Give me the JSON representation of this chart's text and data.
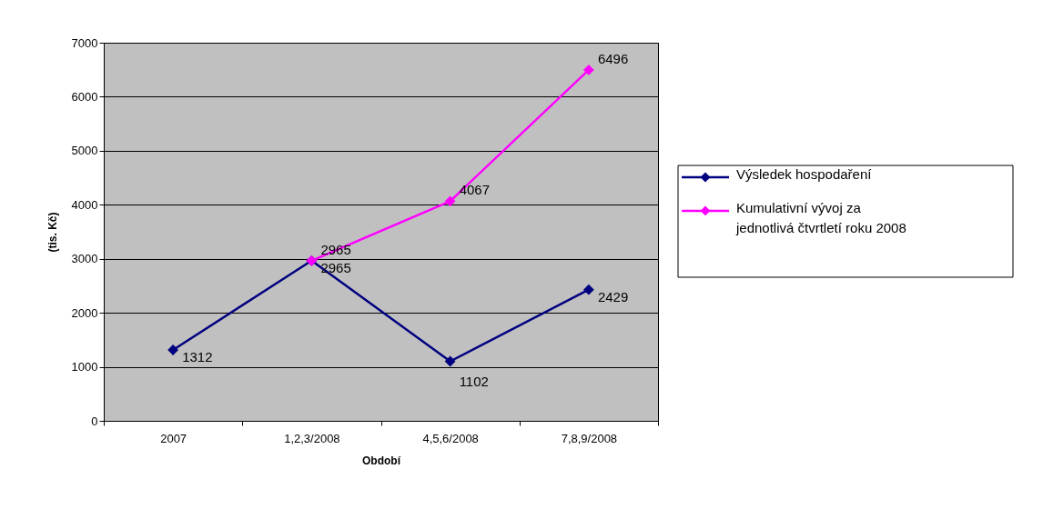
{
  "chart_data": {
    "type": "line",
    "xlabel": "Období",
    "ylabel": "(tis. Kč)",
    "categories": [
      "2007",
      "1,2,3/2008",
      "4,5,6/2008",
      "7,8,9/2008"
    ],
    "series": [
      {
        "name": "Výsledek hospodaření",
        "color": "#000080",
        "values": [
          1312,
          2965,
          1102,
          2429
        ]
      },
      {
        "name": "Kumulativní vývoj za jednotlivá čtvrtletí roku 2008",
        "color": "#ff00ff",
        "values": [
          null,
          2965,
          4067,
          6496
        ]
      }
    ],
    "ylim": [
      0,
      7000
    ],
    "yticks": [
      0,
      1000,
      2000,
      3000,
      4000,
      5000,
      6000,
      7000
    ],
    "grid": "y",
    "legend": "right",
    "marker": "diamond",
    "line_style": "solid",
    "data_labels": true
  }
}
